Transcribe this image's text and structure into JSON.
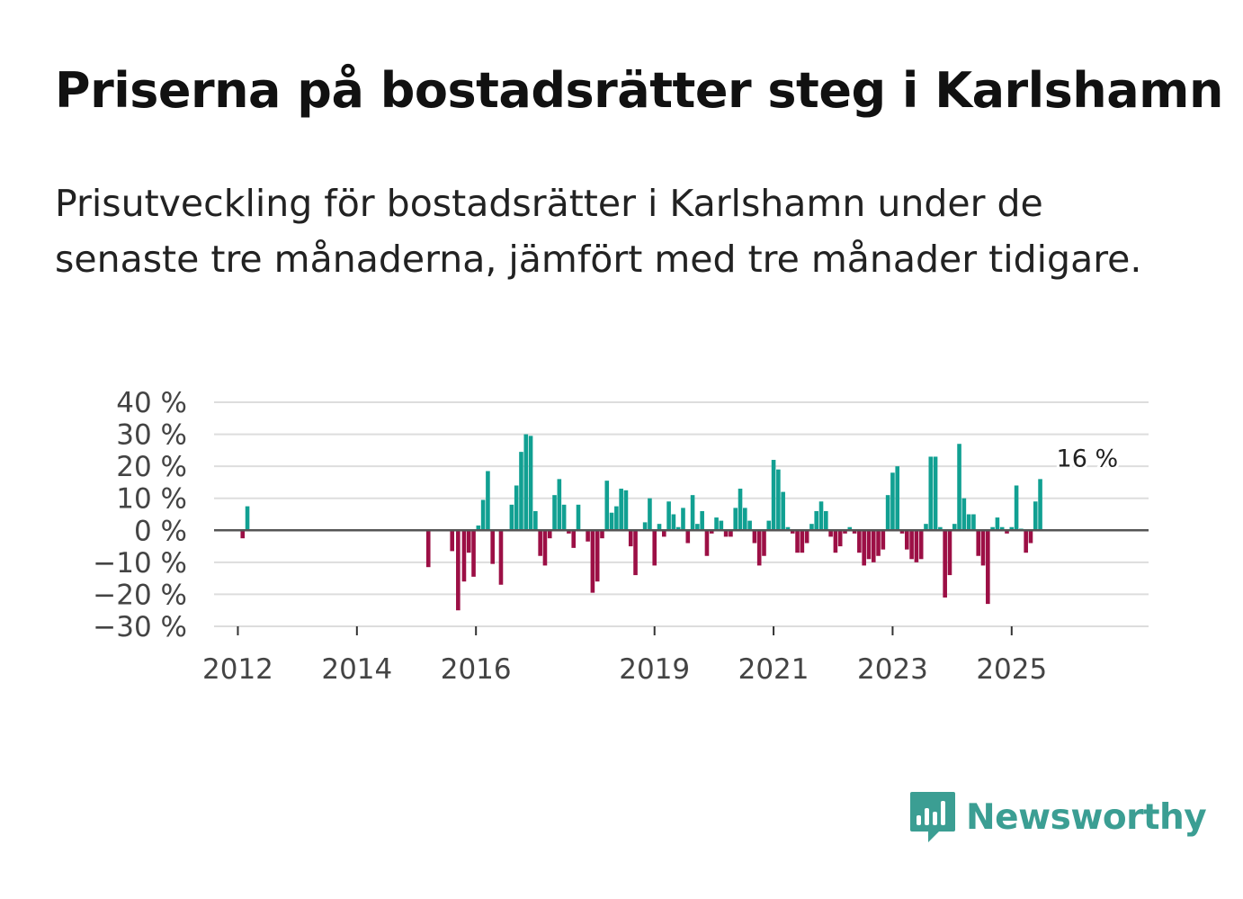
{
  "title": "Priserna på bostadsrätter steg i Karlshamn",
  "subtitle": "Prisutveckling för bostadsrätter i Karlshamn under de senaste tre månaderna, jämfört med tre månader tidigare.",
  "logo": {
    "text": "Newsworthy",
    "icon": "newsworthy-bar-chart-icon"
  },
  "colors": {
    "positive": "#11a092",
    "negative": "#9c0f45",
    "zero_line": "#555555",
    "grid": "#dddddd"
  },
  "chart_data": {
    "type": "bar",
    "title": "Priserna på bostadsrätter steg i Karlshamn",
    "xlabel": "",
    "ylabel": "",
    "ylim": [
      -30,
      40
    ],
    "y_ticks": [
      40,
      30,
      20,
      10,
      0,
      -10,
      -20,
      -30
    ],
    "y_tick_labels": [
      "40 %",
      "30 %",
      "20 %",
      "10 %",
      "0 %",
      "−10 %",
      "−20 %",
      "−30 %"
    ],
    "x_ticks": [
      "2012",
      "2014",
      "2016",
      "2019",
      "2021",
      "2023",
      "2025"
    ],
    "x_tick_positions": [
      2012,
      2014,
      2016,
      2019,
      2021,
      2023,
      2025
    ],
    "xlim": [
      2011.6,
      2027.3
    ],
    "annotation": {
      "label": "16 %",
      "x": 2026.27,
      "value": 16
    },
    "series": [
      {
        "name": "Prisutveckling",
        "points": [
          [
            2012.08,
            -2.5
          ],
          [
            2012.16,
            7.5
          ],
          [
            2015.2,
            -11.5
          ],
          [
            2015.6,
            -6.5
          ],
          [
            2015.7,
            -25
          ],
          [
            2015.8,
            -16
          ],
          [
            2015.88,
            -7
          ],
          [
            2015.96,
            -14.5
          ],
          [
            2016.04,
            1.5
          ],
          [
            2016.12,
            9.5
          ],
          [
            2016.2,
            18.5
          ],
          [
            2016.28,
            -10.5
          ],
          [
            2016.42,
            -17
          ],
          [
            2016.6,
            8
          ],
          [
            2016.68,
            14
          ],
          [
            2016.76,
            24.5
          ],
          [
            2016.84,
            30
          ],
          [
            2016.92,
            29.5
          ],
          [
            2017.0,
            6
          ],
          [
            2017.08,
            -8
          ],
          [
            2017.16,
            -11
          ],
          [
            2017.24,
            -2.5
          ],
          [
            2017.32,
            11
          ],
          [
            2017.4,
            16
          ],
          [
            2017.48,
            8
          ],
          [
            2017.56,
            -1
          ],
          [
            2017.64,
            -5.5
          ],
          [
            2017.72,
            8
          ],
          [
            2017.88,
            -3.5
          ],
          [
            2017.96,
            -19.5
          ],
          [
            2018.04,
            -16
          ],
          [
            2018.12,
            -2.5
          ],
          [
            2018.2,
            15.5
          ],
          [
            2018.28,
            5.5
          ],
          [
            2018.36,
            7.5
          ],
          [
            2018.44,
            13
          ],
          [
            2018.52,
            12.5
          ],
          [
            2018.6,
            -5
          ],
          [
            2018.68,
            -14
          ],
          [
            2018.84,
            2.5
          ],
          [
            2018.92,
            10
          ],
          [
            2019.0,
            -11
          ],
          [
            2019.08,
            2
          ],
          [
            2019.16,
            -2
          ],
          [
            2019.24,
            9
          ],
          [
            2019.32,
            5
          ],
          [
            2019.4,
            1
          ],
          [
            2019.48,
            7
          ],
          [
            2019.56,
            -4
          ],
          [
            2019.64,
            11
          ],
          [
            2019.72,
            2
          ],
          [
            2019.8,
            6
          ],
          [
            2019.88,
            -8
          ],
          [
            2019.96,
            -1
          ],
          [
            2020.04,
            4
          ],
          [
            2020.12,
            3
          ],
          [
            2020.2,
            -2
          ],
          [
            2020.28,
            -2
          ],
          [
            2020.36,
            7
          ],
          [
            2020.44,
            13
          ],
          [
            2020.52,
            7
          ],
          [
            2020.6,
            3
          ],
          [
            2020.68,
            -4
          ],
          [
            2020.76,
            -11
          ],
          [
            2020.84,
            -8
          ],
          [
            2020.92,
            3
          ],
          [
            2021.0,
            22
          ],
          [
            2021.08,
            19
          ],
          [
            2021.16,
            12
          ],
          [
            2021.24,
            1
          ],
          [
            2021.32,
            -1
          ],
          [
            2021.4,
            -7
          ],
          [
            2021.48,
            -7
          ],
          [
            2021.56,
            -4
          ],
          [
            2021.64,
            2
          ],
          [
            2021.72,
            6
          ],
          [
            2021.8,
            9
          ],
          [
            2021.88,
            6
          ],
          [
            2021.96,
            -2
          ],
          [
            2022.04,
            -7
          ],
          [
            2022.12,
            -5
          ],
          [
            2022.2,
            -1
          ],
          [
            2022.28,
            1
          ],
          [
            2022.36,
            -1
          ],
          [
            2022.44,
            -7
          ],
          [
            2022.52,
            -11
          ],
          [
            2022.6,
            -9
          ],
          [
            2022.68,
            -10
          ],
          [
            2022.76,
            -8
          ],
          [
            2022.84,
            -6
          ],
          [
            2022.92,
            11
          ],
          [
            2023.0,
            18
          ],
          [
            2023.08,
            20
          ],
          [
            2023.16,
            -1
          ],
          [
            2023.24,
            -6
          ],
          [
            2023.32,
            -9
          ],
          [
            2023.4,
            -10
          ],
          [
            2023.48,
            -9
          ],
          [
            2023.56,
            2
          ],
          [
            2023.64,
            23
          ],
          [
            2023.72,
            23
          ],
          [
            2023.8,
            1
          ],
          [
            2023.88,
            -21
          ],
          [
            2023.96,
            -14
          ],
          [
            2024.04,
            2
          ],
          [
            2024.12,
            27
          ],
          [
            2024.2,
            10
          ],
          [
            2024.28,
            5
          ],
          [
            2024.36,
            5
          ],
          [
            2024.44,
            -8
          ],
          [
            2024.52,
            -11
          ],
          [
            2024.6,
            -23
          ],
          [
            2024.68,
            1
          ],
          [
            2024.76,
            4
          ],
          [
            2024.84,
            1
          ],
          [
            2024.92,
            -1
          ],
          [
            2025.0,
            1
          ],
          [
            2025.08,
            14
          ],
          [
            2025.16,
            0.5
          ],
          [
            2025.24,
            -7
          ],
          [
            2025.32,
            -4
          ],
          [
            2025.4,
            9
          ],
          [
            2025.48,
            16
          ]
        ]
      }
    ]
  }
}
